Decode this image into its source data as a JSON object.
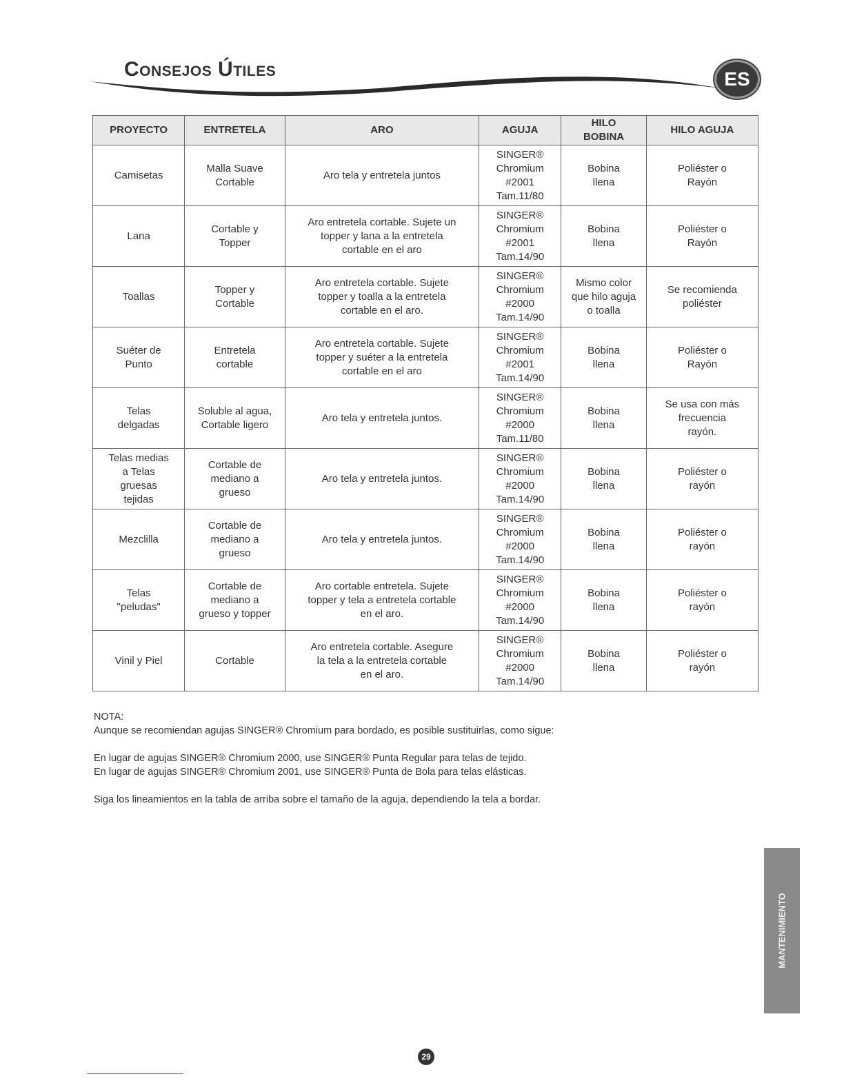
{
  "header": {
    "title": "Consejos Útiles",
    "lang_badge": "ES"
  },
  "table": {
    "headers": [
      "PROYECTO",
      "ENTRETELA",
      "ARO",
      "AGUJA",
      "HILO\nBOBINA",
      "HILO AGUJA"
    ],
    "rows": [
      [
        "Camisetas",
        "Malla Suave\nCortable",
        "Aro tela y entretela juntos",
        "SINGER®\nChromium\n#2001\nTam.11/80",
        "Bobina\nllena",
        "Poliéster o\nRayón"
      ],
      [
        "Lana",
        "Cortable y\nTopper",
        "Aro entretela cortable. Sujete un\ntopper y lana a la entretela\ncortable en el aro",
        "SINGER®\nChromium\n#2001\nTam.14/90",
        "Bobina\nllena",
        "Poliéster o\nRayón"
      ],
      [
        "Toallas",
        "Topper y\nCortable",
        "Aro entretela cortable. Sujete\ntopper y toalla a la entretela\ncortable en el aro.",
        "SINGER®\nChromium\n#2000\nTam.14/90",
        "Mismo color\nque hilo aguja\no toalla",
        "Se recomienda\npoliéster"
      ],
      [
        "Suéter de\nPunto",
        "Entretela\ncortable",
        "Aro entretela cortable. Sujete\ntopper y suéter a la entretela\ncortable en el aro",
        "SINGER®\nChromium\n#2001\nTam.14/90",
        "Bobina\nllena",
        "Poliéster o\nRayón"
      ],
      [
        "Telas\ndelgadas",
        "Soluble al agua,\nCortable ligero",
        "Aro tela y entretela juntos.",
        "SINGER®\nChromium\n#2000\nTam.11/80",
        "Bobina\nllena",
        "Se usa con más\nfrecuencia\nrayón."
      ],
      [
        "Telas medias\na Telas\ngruesas\ntejidas",
        "Cortable de\nmediano a\ngrueso",
        "Aro tela y entretela juntos.",
        "SINGER®\nChromium\n#2000\nTam.14/90",
        "Bobina\nllena",
        "Poliéster o\nrayón"
      ],
      [
        "Mezclilla",
        "Cortable de\nmediano a\ngrueso",
        "Aro tela y entretela juntos.",
        "SINGER®\nChromium\n#2000\nTam.14/90",
        "Bobina\nllena",
        "Poliéster o\nrayón"
      ],
      [
        "Telas\n\"peludas\"",
        "Cortable de\nmediano a\ngrueso y topper",
        "Aro cortable entretela. Sujete\ntopper y tela a entretela cortable\nen el aro.",
        "SINGER®\nChromium\n#2000\nTam.14/90",
        "Bobina\nllena",
        "Poliéster o\nrayón"
      ],
      [
        "Vinil y Piel",
        "Cortable",
        "Aro entretela cortable. Asegure\nla tela a la entretela cortable\nen el aro.",
        "SINGER®\nChromium\n#2000\nTam.14/90",
        "Bobina\nllena",
        "Poliéster o\nrayón"
      ]
    ]
  },
  "note": {
    "label": "NOTA:",
    "intro": "Aunque se recomiendan agujas SINGER® Chromium para bordado, es posible sustituirlas, como sigue:",
    "line1": "En lugar de agujas SINGER® Chromium 2000, use SINGER® Punta Regular para telas de tejido.",
    "line2": "En lugar de agujas SINGER® Chromium 2001, use SINGER® Punta de Bola para telas elásticas.",
    "line3": "Siga los lineamientos en la tabla de arriba sobre el tamaño de la aguja, dependiendo la tela a bordar."
  },
  "side_tab": "MANTENIMIENTO",
  "page_number": "29"
}
